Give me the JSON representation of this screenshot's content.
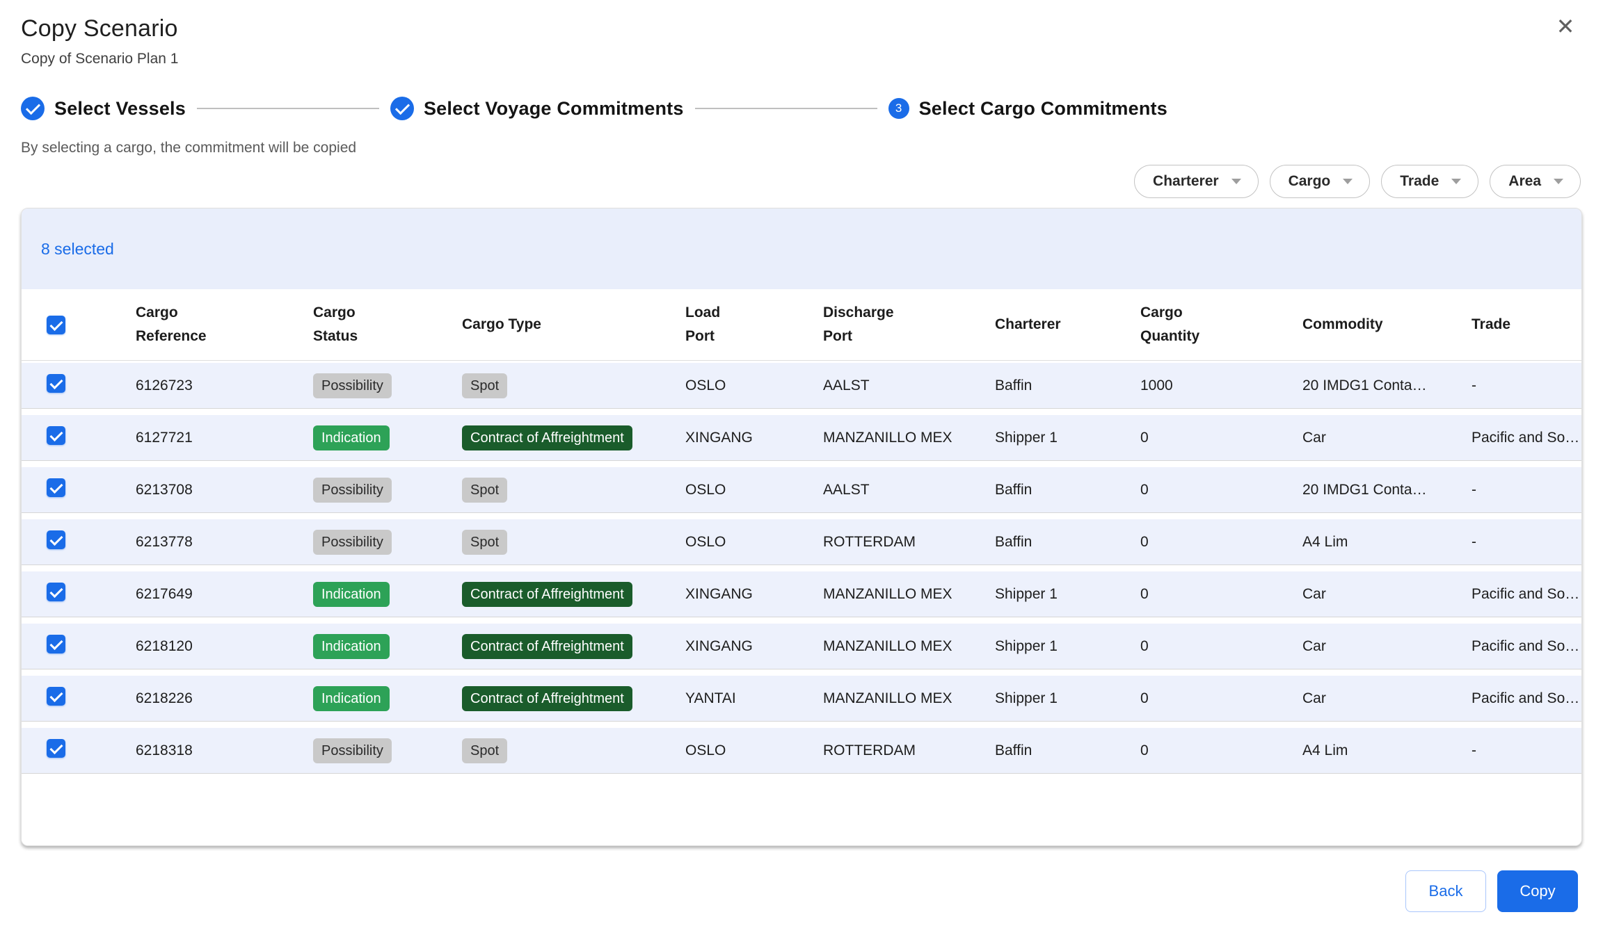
{
  "modal": {
    "title": "Copy Scenario",
    "subtitle": "Copy of Scenario Plan 1"
  },
  "stepper": {
    "steps": [
      {
        "label": "Select Vessels",
        "state": "complete"
      },
      {
        "label": "Select Voyage Commitments",
        "state": "complete"
      },
      {
        "label": "Select Cargo Commitments",
        "state": "active",
        "number": "3"
      }
    ]
  },
  "helper_text": "By selecting a cargo, the commitment will be copied",
  "filters": [
    {
      "label": "Charterer"
    },
    {
      "label": "Cargo"
    },
    {
      "label": "Trade"
    },
    {
      "label": "Area"
    }
  ],
  "selection_banner": {
    "text": "8 selected"
  },
  "table": {
    "columns": [
      {
        "id": "select",
        "label": ""
      },
      {
        "id": "cargo-reference",
        "label": "Cargo\nReference"
      },
      {
        "id": "cargo-status",
        "label": "Cargo\nStatus"
      },
      {
        "id": "cargo-type",
        "label": "Cargo Type"
      },
      {
        "id": "load-port",
        "label": "Load\nPort"
      },
      {
        "id": "discharge-port",
        "label": "Discharge\nPort"
      },
      {
        "id": "charterer",
        "label": "Charterer"
      },
      {
        "id": "cargo-quantity",
        "label": "Cargo\nQuantity"
      },
      {
        "id": "commodity",
        "label": "Commodity"
      },
      {
        "id": "trade",
        "label": "Trade"
      }
    ],
    "rows": [
      {
        "selected": true,
        "reference": "6126723",
        "status": "Possibility",
        "status_variant": "gray",
        "type": "Spot",
        "type_variant": "gray",
        "load_port": "OSLO",
        "discharge_port": "AALST",
        "charterer": "Baffin",
        "quantity": "1000",
        "commodity": "20 IMDG1 Conta…",
        "trade": "-"
      },
      {
        "selected": true,
        "reference": "6127721",
        "status": "Indication",
        "status_variant": "green",
        "type": "Contract of Affreightment",
        "type_variant": "dark-green",
        "load_port": "XINGANG",
        "discharge_port": "MANZANILLO MEX",
        "charterer": "Shipper 1",
        "quantity": "0",
        "commodity": "Car",
        "trade": "Pacific and So…"
      },
      {
        "selected": true,
        "reference": "6213708",
        "status": "Possibility",
        "status_variant": "gray",
        "type": "Spot",
        "type_variant": "gray",
        "load_port": "OSLO",
        "discharge_port": "AALST",
        "charterer": "Baffin",
        "quantity": "0",
        "commodity": "20 IMDG1 Conta…",
        "trade": "-"
      },
      {
        "selected": true,
        "reference": "6213778",
        "status": "Possibility",
        "status_variant": "gray",
        "type": "Spot",
        "type_variant": "gray",
        "load_port": "OSLO",
        "discharge_port": "ROTTERDAM",
        "charterer": "Baffin",
        "quantity": "0",
        "commodity": "A4 Lim",
        "trade": "-"
      },
      {
        "selected": true,
        "reference": "6217649",
        "status": "Indication",
        "status_variant": "green",
        "type": "Contract of Affreightment",
        "type_variant": "dark-green",
        "load_port": "XINGANG",
        "discharge_port": "MANZANILLO MEX",
        "charterer": "Shipper 1",
        "quantity": "0",
        "commodity": "Car",
        "trade": "Pacific and So…"
      },
      {
        "selected": true,
        "reference": "6218120",
        "status": "Indication",
        "status_variant": "green",
        "type": "Contract of Affreightment",
        "type_variant": "dark-green",
        "load_port": "XINGANG",
        "discharge_port": "MANZANILLO MEX",
        "charterer": "Shipper 1",
        "quantity": "0",
        "commodity": "Car",
        "trade": "Pacific and So…"
      },
      {
        "selected": true,
        "reference": "6218226",
        "status": "Indication",
        "status_variant": "green",
        "type": "Contract of Affreightment",
        "type_variant": "dark-green",
        "load_port": "YANTAI",
        "discharge_port": "MANZANILLO MEX",
        "charterer": "Shipper 1",
        "quantity": "0",
        "commodity": "Car",
        "trade": "Pacific and So…"
      },
      {
        "selected": true,
        "reference": "6218318",
        "status": "Possibility",
        "status_variant": "gray",
        "type": "Spot",
        "type_variant": "gray",
        "load_port": "OSLO",
        "discharge_port": "ROTTERDAM",
        "charterer": "Baffin",
        "quantity": "0",
        "commodity": "A4 Lim",
        "trade": "-"
      }
    ]
  },
  "footer": {
    "back_label": "Back",
    "copy_label": "Copy"
  },
  "icons": {
    "close": "✕"
  },
  "colors": {
    "accent": "#1a6ce8",
    "banner_bg": "#e9eefb",
    "row_bg": "#edf1fc",
    "badge_gray_bg": "#c9c9c9",
    "badge_gray_text": "#2b2b2b",
    "badge_green_bg": "#2da257",
    "badge_dark_green_bg": "#1a5c2b",
    "badge_light_text": "#ffffff"
  }
}
